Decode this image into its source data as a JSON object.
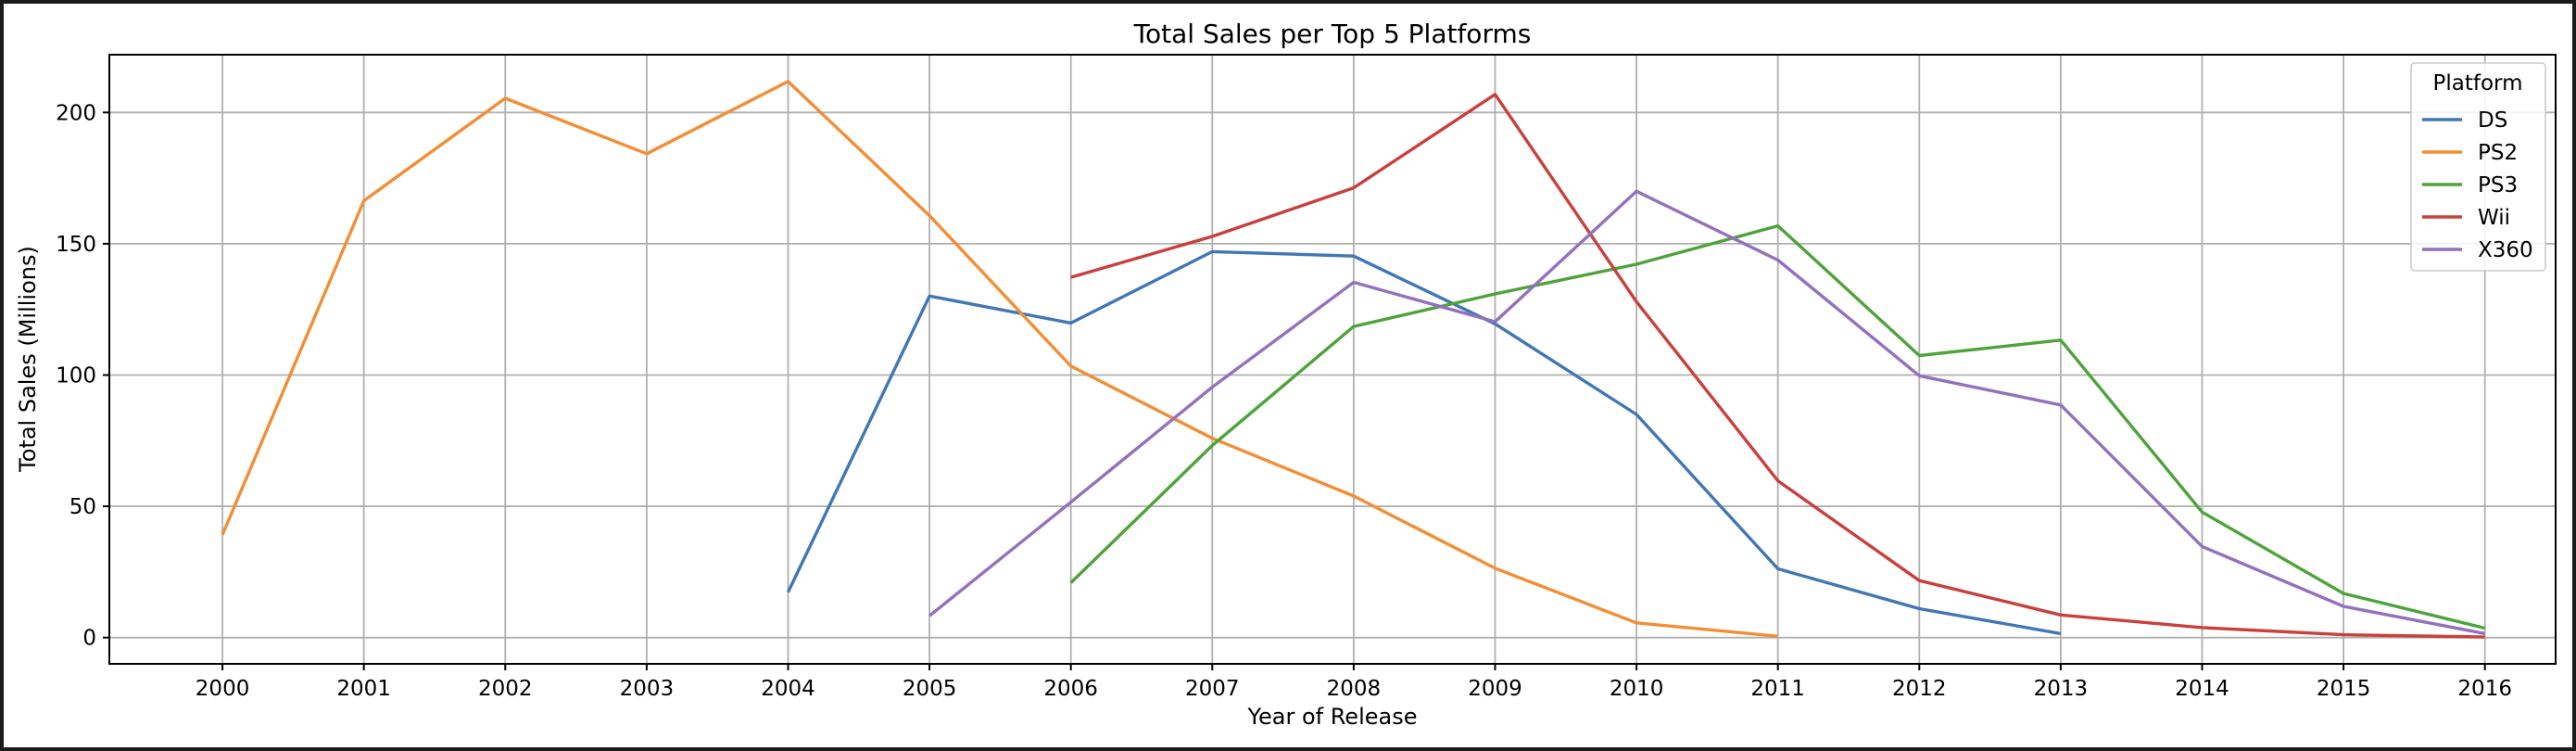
{
  "chart_data": {
    "type": "line",
    "title": "Total Sales per Top 5 Platforms",
    "xlabel": "Year of Release",
    "ylabel": "Total Sales (Millions)",
    "xlim": [
      1999.2,
      2016.5
    ],
    "ylim": [
      -10,
      222
    ],
    "x_ticks": [
      2000,
      2001,
      2002,
      2003,
      2004,
      2005,
      2006,
      2007,
      2008,
      2009,
      2010,
      2011,
      2012,
      2013,
      2014,
      2015,
      2016
    ],
    "y_ticks": [
      0,
      50,
      100,
      150,
      200
    ],
    "grid": true,
    "legend": {
      "title": "Platform",
      "placement": "top-right"
    },
    "series": [
      {
        "name": "DS",
        "color": "#4077b4",
        "points": [
          [
            2004,
            17.3
          ],
          [
            2005,
            130.1
          ],
          [
            2006,
            119.8
          ],
          [
            2007,
            147.0
          ],
          [
            2008,
            145.3
          ],
          [
            2009,
            119.5
          ],
          [
            2010,
            85.0
          ],
          [
            2011,
            26.2
          ],
          [
            2012,
            11.0
          ],
          [
            2013,
            1.5
          ]
        ]
      },
      {
        "name": "PS2",
        "color": "#f28e35",
        "points": [
          [
            2000,
            39.2
          ],
          [
            2001,
            166.4
          ],
          [
            2002,
            205.4
          ],
          [
            2003,
            184.3
          ],
          [
            2004,
            211.8
          ],
          [
            2005,
            160.7
          ],
          [
            2006,
            103.4
          ],
          [
            2007,
            75.9
          ],
          [
            2008,
            53.9
          ],
          [
            2009,
            26.4
          ],
          [
            2010,
            5.6
          ],
          [
            2011,
            0.5
          ]
        ]
      },
      {
        "name": "PS3",
        "color": "#4ea33a",
        "points": [
          [
            2006,
            20.9
          ],
          [
            2007,
            73.2
          ],
          [
            2008,
            118.5
          ],
          [
            2009,
            130.9
          ],
          [
            2010,
            142.2
          ],
          [
            2011,
            156.8
          ],
          [
            2012,
            107.4
          ],
          [
            2013,
            113.3
          ],
          [
            2014,
            47.8
          ],
          [
            2015,
            16.8
          ],
          [
            2016,
            3.6
          ]
        ]
      },
      {
        "name": "Wii",
        "color": "#c9403d",
        "points": [
          [
            2006,
            137.2
          ],
          [
            2007,
            152.8
          ],
          [
            2008,
            171.3
          ],
          [
            2009,
            206.9
          ],
          [
            2010,
            127.9
          ],
          [
            2011,
            59.7
          ],
          [
            2012,
            21.7
          ],
          [
            2013,
            8.6
          ],
          [
            2014,
            3.8
          ],
          [
            2015,
            1.1
          ],
          [
            2016,
            0.2
          ]
        ]
      },
      {
        "name": "X360",
        "color": "#9371be",
        "points": [
          [
            2005,
            8.3
          ],
          [
            2006,
            51.6
          ],
          [
            2007,
            95.4
          ],
          [
            2008,
            135.3
          ],
          [
            2009,
            120.3
          ],
          [
            2010,
            170.0
          ],
          [
            2011,
            143.8
          ],
          [
            2012,
            99.7
          ],
          [
            2013,
            88.6
          ],
          [
            2014,
            34.7
          ],
          [
            2015,
            11.9
          ],
          [
            2016,
            1.5
          ]
        ]
      }
    ]
  }
}
